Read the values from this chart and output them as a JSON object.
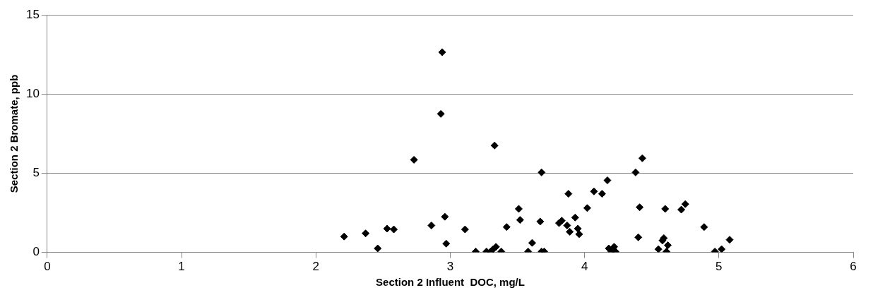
{
  "chart_data": {
    "type": "scatter",
    "xlabel": "Section 2 Influent  DOC, mg/L",
    "ylabel": "Section 2 Bromate, ppb",
    "color": "#000000",
    "marker": "diamond",
    "grid": "y",
    "xlim": [
      0,
      6
    ],
    "xticks": [
      0,
      1,
      2,
      3,
      4,
      5,
      6
    ],
    "ylim": [
      0,
      15
    ],
    "yticks": [
      0,
      5,
      10,
      15
    ],
    "x": [
      2.21,
      2.37,
      2.46,
      2.53,
      2.58,
      2.73,
      2.86,
      2.93,
      2.94,
      2.96,
      2.97,
      3.11,
      3.19,
      3.27,
      3.3,
      3.32,
      3.33,
      3.34,
      3.38,
      3.42,
      3.51,
      3.52,
      3.58,
      3.61,
      3.67,
      3.68,
      3.68,
      3.7,
      3.81,
      3.83,
      3.87,
      3.88,
      3.89,
      3.93,
      3.95,
      3.96,
      4.02,
      4.07,
      4.13,
      4.17,
      4.18,
      4.2,
      4.22,
      4.23,
      4.38,
      4.4,
      4.41,
      4.43,
      4.55,
      4.58,
      4.59,
      4.6,
      4.61,
      4.62,
      4.72,
      4.75,
      4.89,
      4.97,
      5.02,
      5.08
    ],
    "values": [
      1.0,
      1.2,
      0.25,
      1.5,
      1.45,
      5.85,
      1.7,
      8.75,
      12.65,
      2.25,
      0.55,
      1.45,
      0.05,
      0.05,
      0.05,
      0.2,
      6.75,
      0.35,
      0.05,
      1.6,
      2.75,
      2.05,
      0.05,
      0.6,
      1.95,
      5.05,
      0.05,
      0.05,
      1.85,
      2.0,
      1.7,
      3.7,
      1.3,
      2.2,
      1.5,
      1.15,
      2.8,
      3.85,
      3.7,
      4.55,
      0.25,
      0.05,
      0.35,
      0.05,
      5.05,
      0.95,
      2.85,
      5.95,
      0.2,
      0.75,
      0.9,
      2.75,
      0.05,
      0.45,
      2.7,
      3.05,
      1.6,
      0.05,
      0.2,
      0.8
    ]
  }
}
